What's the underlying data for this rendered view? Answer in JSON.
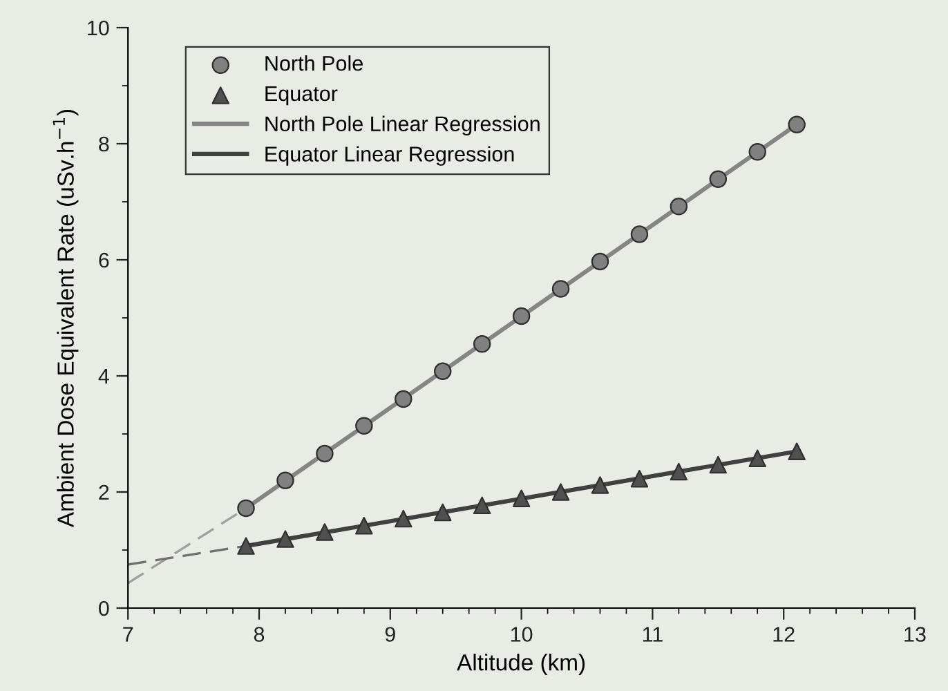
{
  "chart_data": {
    "type": "scatter",
    "xlabel": "Altitude (km)",
    "ylabel": "Ambient Dose Equivalent Rate (uSv.h$^{−1}$)",
    "xlim": [
      7,
      13
    ],
    "xticks": [
      7,
      8,
      9,
      10,
      11,
      12,
      13
    ],
    "ylim": [
      0,
      10
    ],
    "yticks": [
      0,
      2,
      4,
      6,
      8,
      10
    ],
    "legend": "top left",
    "grid": false,
    "series": [
      {
        "name": "North Pole",
        "marker": "circle",
        "color": "#808080",
        "x": [
          7.9,
          8.2,
          8.5,
          8.8,
          9.1,
          9.4,
          9.7,
          10.0,
          10.3,
          10.6,
          10.9,
          11.2,
          11.5,
          11.8,
          12.1
        ],
        "values": [
          1.72,
          2.2,
          2.66,
          3.14,
          3.6,
          4.08,
          4.55,
          5.03,
          5.5,
          5.97,
          6.44,
          6.92,
          7.39,
          7.86,
          8.33
        ]
      },
      {
        "name": "Equator",
        "marker": "triangle",
        "color": "#505050",
        "x": [
          7.9,
          8.2,
          8.5,
          8.8,
          9.1,
          9.4,
          9.7,
          10.0,
          10.3,
          10.6,
          10.9,
          11.2,
          11.5,
          11.8,
          12.1
        ],
        "values": [
          1.07,
          1.19,
          1.31,
          1.42,
          1.54,
          1.65,
          1.77,
          1.89,
          2.0,
          2.12,
          2.23,
          2.35,
          2.47,
          2.58,
          2.7
        ]
      },
      {
        "name": "North Pole Linear Regression",
        "type": "line",
        "line_style": "solid",
        "color": "#858585",
        "x": [
          7.9,
          12.1
        ],
        "values": [
          1.72,
          8.33
        ]
      },
      {
        "name": "Equator Linear Regression",
        "type": "line",
        "line_style": "solid",
        "color": "#404040",
        "x": [
          7.9,
          12.1
        ],
        "values": [
          1.07,
          2.7
        ]
      },
      {
        "type": "line",
        "line_style": "dashed",
        "color": "#a0a0a0",
        "x": [
          7.0,
          7.9
        ],
        "values": [
          0.43,
          1.72
        ]
      },
      {
        "type": "line",
        "line_style": "dashed",
        "color": "#707070",
        "x": [
          7.0,
          7.9
        ],
        "values": [
          0.75,
          1.07
        ]
      }
    ]
  }
}
